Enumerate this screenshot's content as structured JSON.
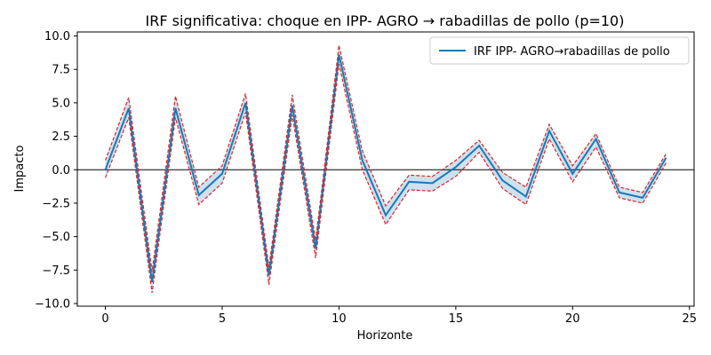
{
  "chart_data": {
    "type": "line",
    "title": "IRF significativa: choque en IPP- AGRO → rabadillas de pollo (p=10)",
    "xlabel": "Horizonte",
    "ylabel": "Impacto",
    "xlim": [
      -1.2,
      25.2
    ],
    "ylim": [
      -10.2,
      10.3
    ],
    "xticks": [
      0,
      5,
      10,
      15,
      20,
      25
    ],
    "yticks": [
      -10.0,
      -7.5,
      -5.0,
      -2.5,
      0.0,
      2.5,
      5.0,
      7.5,
      10.0
    ],
    "grid": false,
    "zero_line": 0,
    "legend_position": "upper right",
    "x": [
      0,
      1,
      2,
      3,
      4,
      5,
      6,
      7,
      8,
      9,
      10,
      11,
      12,
      13,
      14,
      15,
      16,
      17,
      18,
      19,
      20,
      21,
      22,
      23,
      24
    ],
    "series": [
      {
        "name": "IRF IPP- AGRO→rabadillas de pollo",
        "color": "#1f77b4",
        "values": [
          0.0,
          4.6,
          -8.4,
          4.6,
          -1.9,
          -0.3,
          5.0,
          -7.9,
          4.8,
          -5.9,
          8.6,
          0.7,
          -3.4,
          -0.9,
          -1.0,
          0.2,
          1.8,
          -0.8,
          -2.0,
          2.9,
          -0.3,
          2.3,
          -1.7,
          -2.1,
          0.9
        ]
      }
    ],
    "band": {
      "color": "#d62728",
      "fill": "#1f77b4",
      "lower": [
        -0.6,
        3.9,
        -9.2,
        3.9,
        -2.6,
        -1.0,
        4.3,
        -8.6,
        4.1,
        -6.6,
        7.9,
        0.0,
        -4.1,
        -1.5,
        -1.6,
        -0.5,
        1.3,
        -1.4,
        -2.6,
        2.3,
        -0.9,
        1.7,
        -2.1,
        -2.5,
        0.5
      ],
      "upper": [
        0.7,
        5.4,
        -7.6,
        5.5,
        -1.3,
        0.3,
        5.7,
        -7.3,
        5.6,
        -5.3,
        9.3,
        1.4,
        -2.7,
        -0.4,
        -0.5,
        0.7,
        2.2,
        -0.2,
        -1.3,
        3.4,
        0.3,
        2.7,
        -1.3,
        -1.7,
        1.2
      ]
    }
  }
}
